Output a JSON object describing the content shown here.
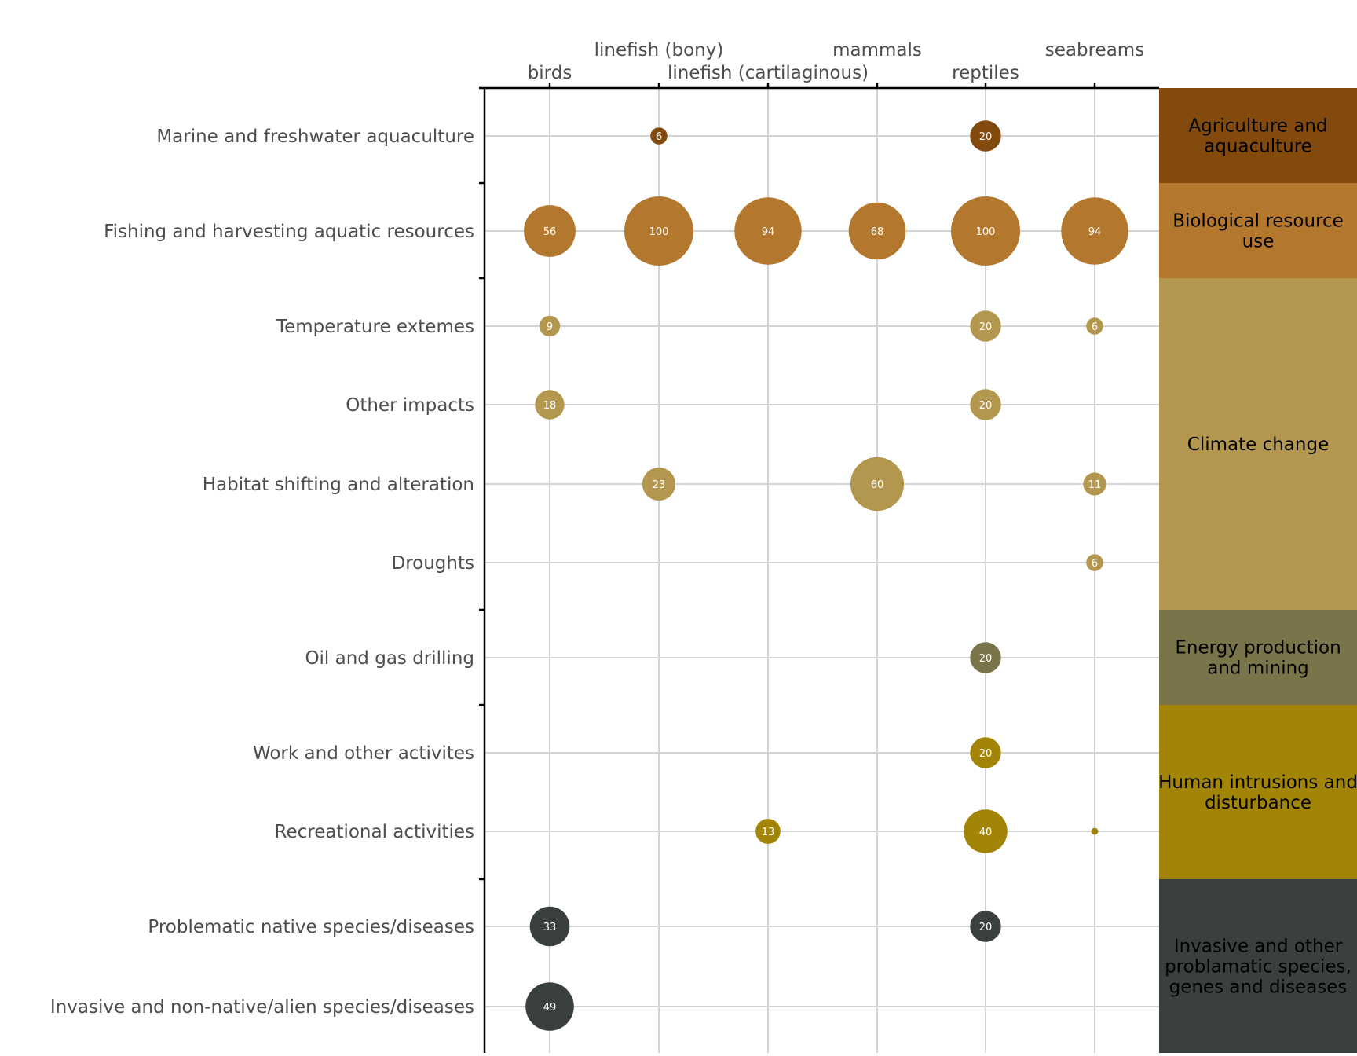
{
  "chart_data": {
    "type": "scatter",
    "subtype": "bubble-matrix",
    "columns": [
      "birds",
      "linefish (bony)",
      "linefish (cartilaginous)",
      "mammals",
      "reptiles",
      "seabreams"
    ],
    "groups": [
      {
        "name": "Agriculture and aquaculture",
        "color": "#834a0e",
        "rows": [
          "Marine and freshwater aquaculture"
        ]
      },
      {
        "name": "Biological resource use",
        "color": "#b3772d",
        "rows": [
          "Fishing and harvesting aquatic resources"
        ]
      },
      {
        "name": "Climate change",
        "color": "#b4974f",
        "rows": [
          "Temperature extemes",
          "Other impacts",
          "Habitat shifting and alteration",
          "Droughts"
        ]
      },
      {
        "name": "Energy production and mining",
        "color": "#7a744a",
        "rows": [
          "Oil and gas drilling"
        ]
      },
      {
        "name": "Human intrusions and disturbance",
        "color": "#a28506",
        "rows": [
          "Work and other activites",
          "Recreational activities"
        ]
      },
      {
        "name": "Invasive and other problamatic species, genes and diseases",
        "color": "#3a413d",
        "rows": [
          "Problematic native species/diseases",
          "Invasive and non-native/alien species/diseases"
        ]
      }
    ],
    "points": [
      {
        "row": "Marine and freshwater aquaculture",
        "column": "linefish (bony)",
        "value": 6
      },
      {
        "row": "Marine and freshwater aquaculture",
        "column": "reptiles",
        "value": 20
      },
      {
        "row": "Fishing and harvesting aquatic resources",
        "column": "birds",
        "value": 56
      },
      {
        "row": "Fishing and harvesting aquatic resources",
        "column": "linefish (bony)",
        "value": 100
      },
      {
        "row": "Fishing and harvesting aquatic resources",
        "column": "linefish (cartilaginous)",
        "value": 94
      },
      {
        "row": "Fishing and harvesting aquatic resources",
        "column": "mammals",
        "value": 68
      },
      {
        "row": "Fishing and harvesting aquatic resources",
        "column": "reptiles",
        "value": 100
      },
      {
        "row": "Fishing and harvesting aquatic resources",
        "column": "seabreams",
        "value": 94
      },
      {
        "row": "Temperature extemes",
        "column": "birds",
        "value": 9
      },
      {
        "row": "Temperature extemes",
        "column": "reptiles",
        "value": 20
      },
      {
        "row": "Temperature extemes",
        "column": "seabreams",
        "value": 6
      },
      {
        "row": "Other impacts",
        "column": "birds",
        "value": 18
      },
      {
        "row": "Other impacts",
        "column": "reptiles",
        "value": 20
      },
      {
        "row": "Habitat shifting and alteration",
        "column": "linefish (bony)",
        "value": 23
      },
      {
        "row": "Habitat shifting and alteration",
        "column": "mammals",
        "value": 60
      },
      {
        "row": "Habitat shifting and alteration",
        "column": "seabreams",
        "value": 11
      },
      {
        "row": "Droughts",
        "column": "seabreams",
        "value": 6
      },
      {
        "row": "Oil and gas drilling",
        "column": "reptiles",
        "value": 20
      },
      {
        "row": "Work and other activites",
        "column": "reptiles",
        "value": 20
      },
      {
        "row": "Recreational activities",
        "column": "linefish (cartilaginous)",
        "value": 13
      },
      {
        "row": "Recreational activities",
        "column": "reptiles",
        "value": 40
      },
      {
        "row": "Recreational activities",
        "column": "seabreams",
        "value": 1,
        "label": ""
      },
      {
        "row": "Problematic native species/diseases",
        "column": "birds",
        "value": 33
      },
      {
        "row": "Problematic native species/diseases",
        "column": "reptiles",
        "value": 20
      },
      {
        "row": "Invasive and non-native/alien species/diseases",
        "column": "birds",
        "value": 49
      }
    ],
    "legend": "none",
    "grid": true
  }
}
